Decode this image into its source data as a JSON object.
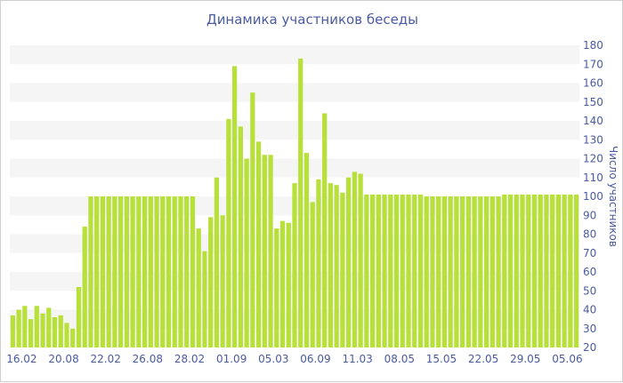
{
  "chart_data": {
    "type": "bar",
    "title": "Динамика участников беседы",
    "xlabel": "",
    "ylabel": "Число участников",
    "ylim": [
      20,
      180
    ],
    "ytick_step": 10,
    "grid": "horizontal alternating bands",
    "bar_color": "#b8e03a",
    "band_color": "#f5f5f5",
    "text_color": "#4a5ba0",
    "legend": "none",
    "x_tick_labels": [
      {
        "label": "16.02",
        "bar": 0
      },
      {
        "label": "20.08",
        "bar": 7
      },
      {
        "label": "22.02",
        "bar": 14
      },
      {
        "label": "26.08",
        "bar": 21
      },
      {
        "label": "28.02",
        "bar": 28
      },
      {
        "label": "01.09",
        "bar": 35
      },
      {
        "label": "05.03",
        "bar": 42
      },
      {
        "label": "06.09",
        "bar": 49
      },
      {
        "label": "11.03",
        "bar": 56
      },
      {
        "label": "08.05",
        "bar": 63
      },
      {
        "label": "15.05",
        "bar": 70
      },
      {
        "label": "22.05",
        "bar": 77
      },
      {
        "label": "29.05",
        "bar": 84
      },
      {
        "label": "05.06",
        "bar": 91
      }
    ],
    "values": [
      37,
      40,
      42,
      35,
      42,
      38,
      41,
      36,
      37,
      33,
      30,
      52,
      84,
      100,
      100,
      100,
      100,
      100,
      100,
      100,
      100,
      100,
      100,
      100,
      100,
      100,
      100,
      100,
      100,
      100,
      100,
      83,
      71,
      89,
      110,
      90,
      141,
      169,
      137,
      120,
      155,
      129,
      122,
      122,
      83,
      87,
      86,
      107,
      173,
      123,
      97,
      109,
      144,
      107,
      106,
      102,
      110,
      113,
      112,
      101,
      101,
      101,
      101,
      101,
      101,
      101,
      101,
      101,
      101,
      100,
      100,
      100,
      100,
      100,
      100,
      100,
      100,
      100,
      100,
      100,
      100,
      100,
      101,
      101,
      101,
      101,
      101,
      101,
      101,
      101,
      101,
      101,
      101,
      101,
      101
    ]
  }
}
